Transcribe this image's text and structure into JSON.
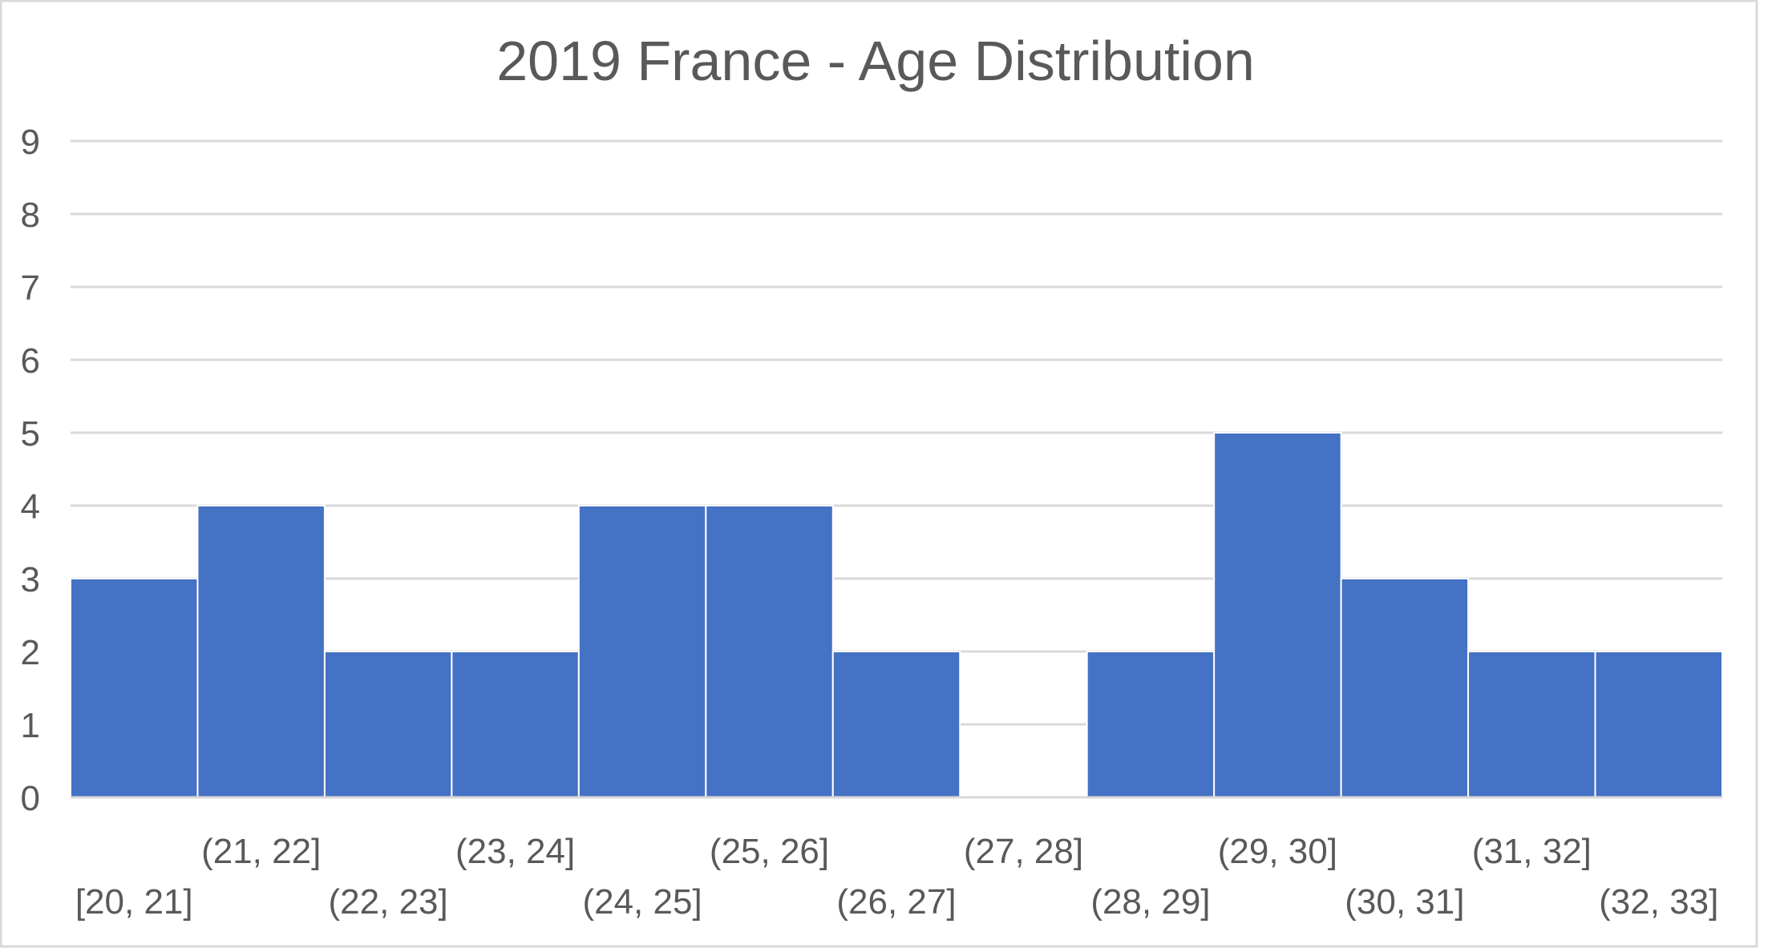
{
  "chart_data": {
    "type": "bar",
    "title": "2019 France - Age Distribution",
    "xlabel": "",
    "ylabel": "",
    "categories": [
      "[20, 21]",
      "(21, 22]",
      "(22, 23]",
      "(23, 24]",
      "(24, 25]",
      "(25, 26]",
      "(26, 27]",
      "(27, 28]",
      "(28, 29]",
      "(29, 30]",
      "(30, 31]",
      "(31, 32]",
      "(32, 33]"
    ],
    "values": [
      3,
      4,
      2,
      2,
      4,
      4,
      2,
      0,
      2,
      5,
      3,
      2,
      2
    ],
    "ylim": [
      0,
      9
    ],
    "yticks": [
      "0",
      "1",
      "2",
      "3",
      "4",
      "5",
      "6",
      "7",
      "8",
      "9"
    ],
    "grid": true,
    "legend": "none",
    "colors": {
      "bar": "#4472C4",
      "bar_edge": "#ffffff",
      "grid": "#d9d9d9",
      "text": "#595959",
      "frame": "#d9d9d9"
    }
  }
}
